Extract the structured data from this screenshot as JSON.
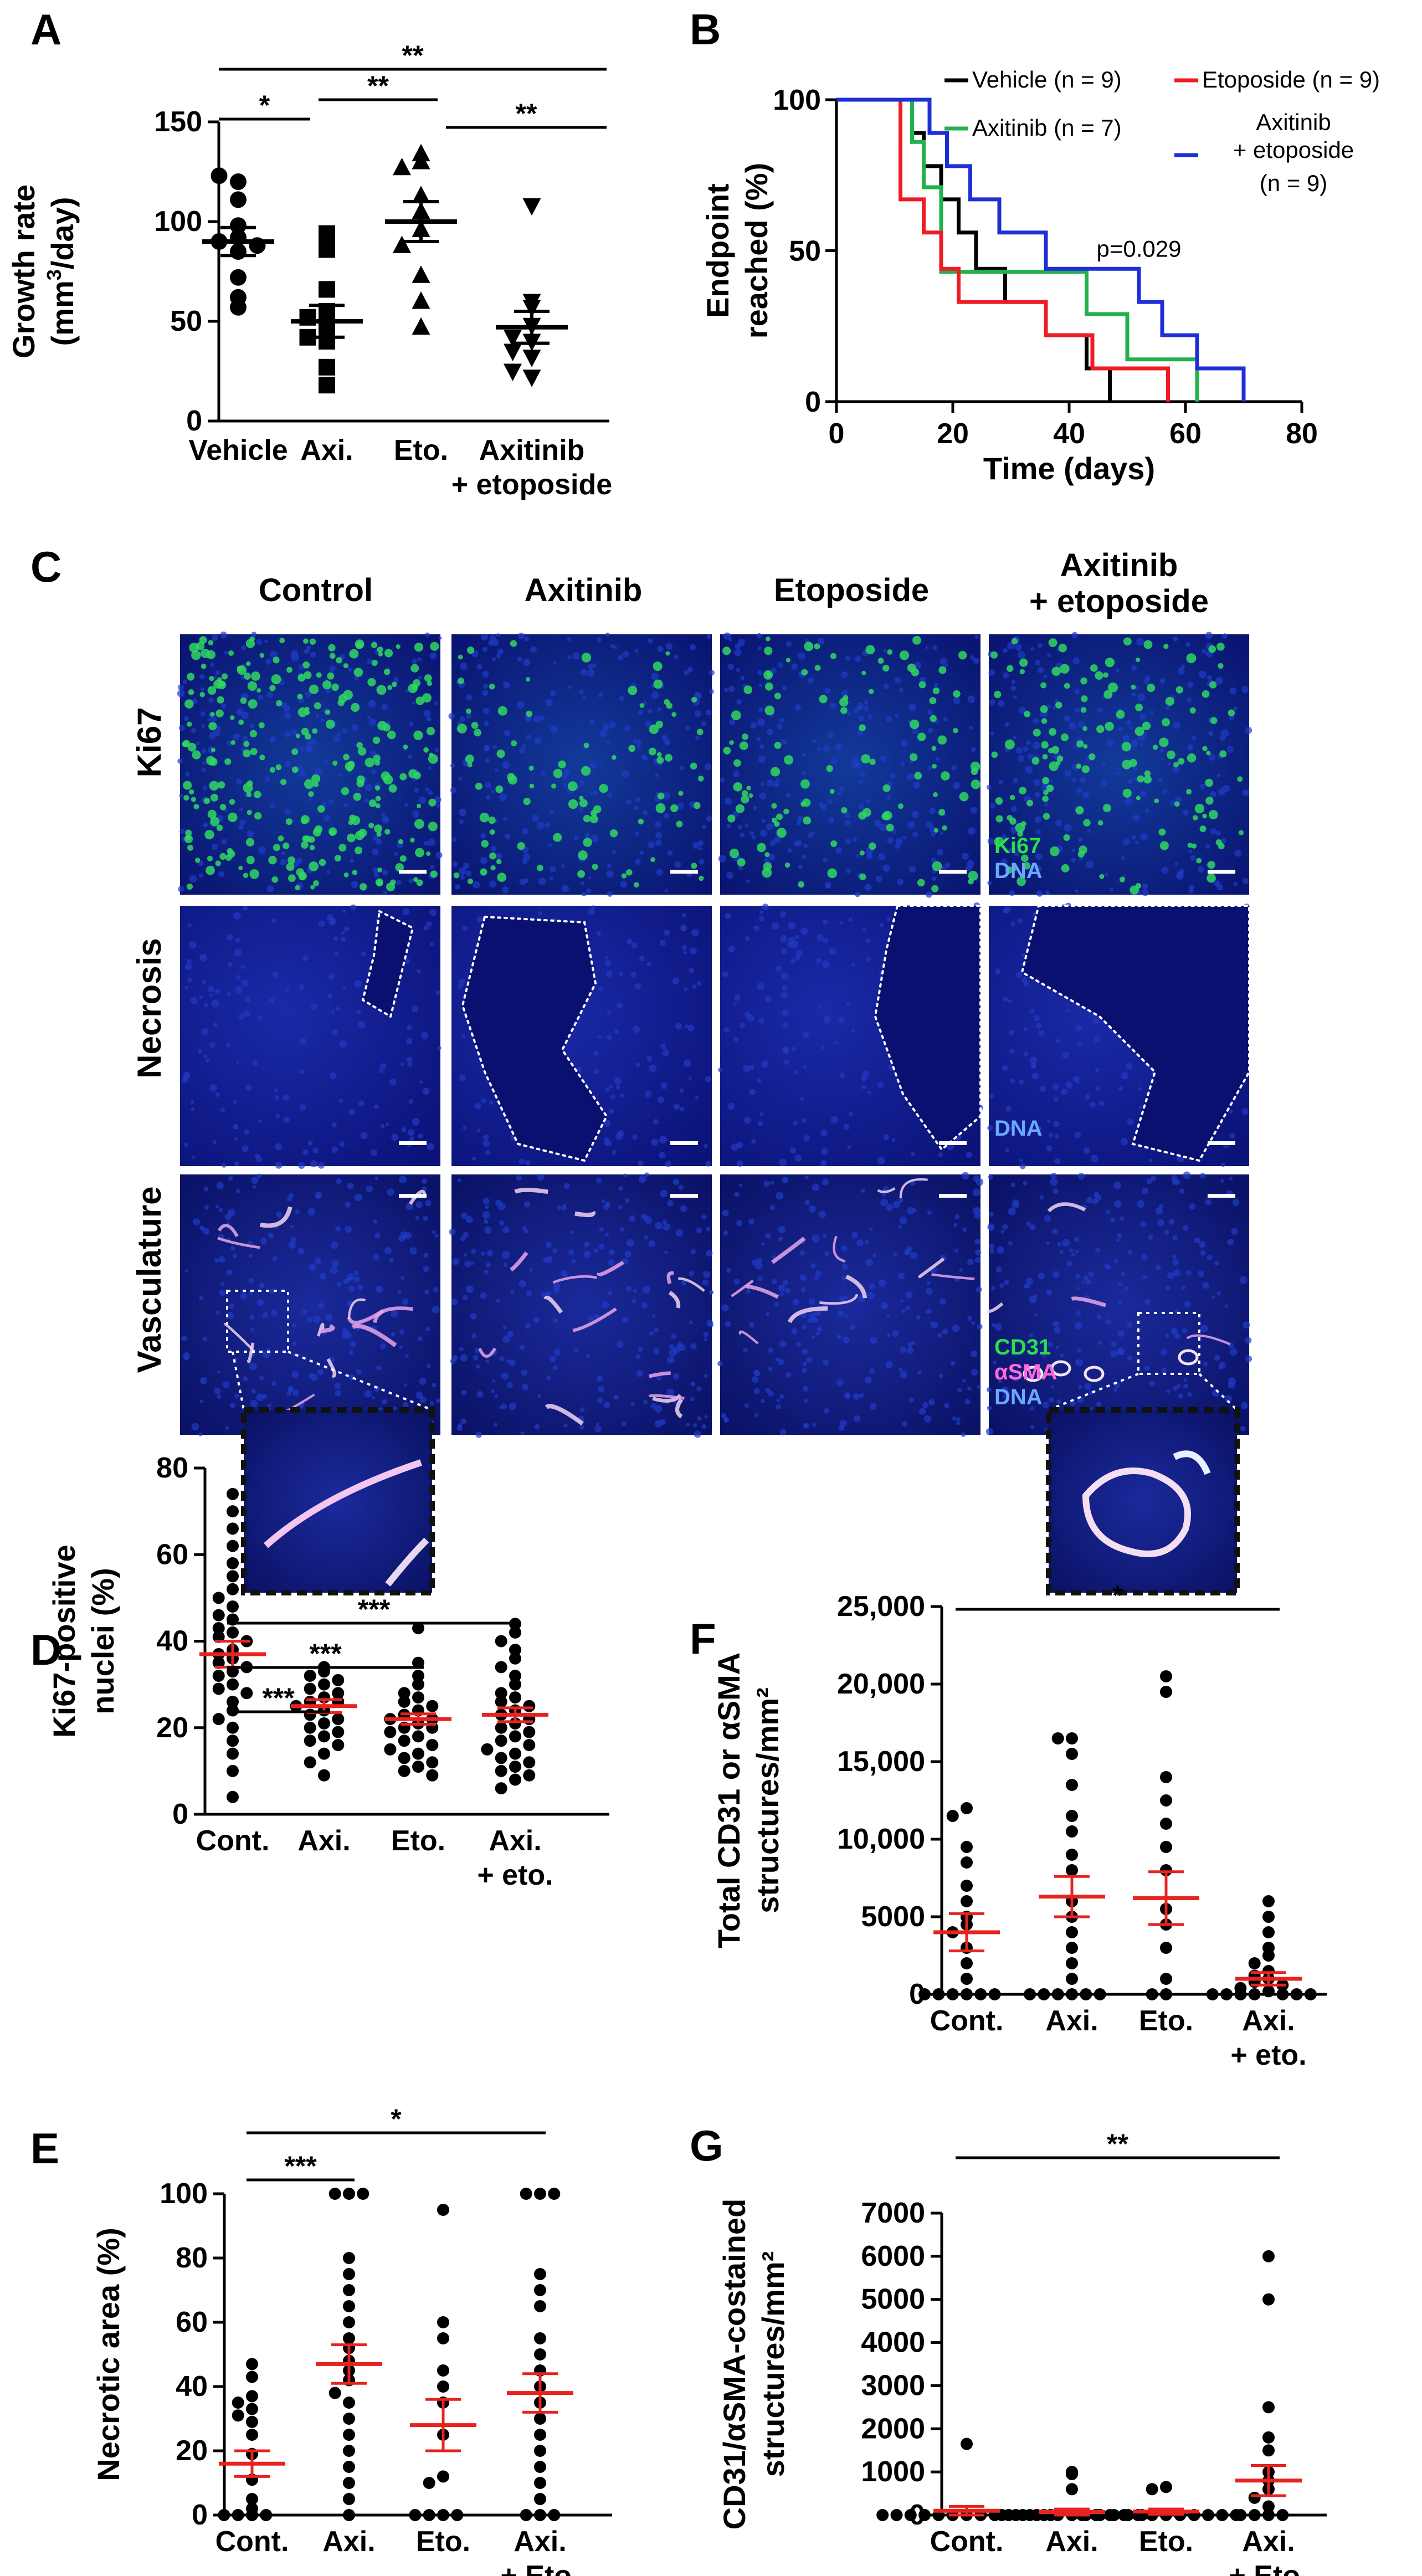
{
  "panel_letters": [
    "A",
    "B",
    "C",
    "D",
    "E",
    "F",
    "G"
  ],
  "colors": {
    "black": "#000000",
    "green": "#22b14c",
    "red": "#ee1c24",
    "blue": "#1f2fd6",
    "mean_red": "#e8231f",
    "tissue": "#101a8a"
  },
  "chart_data": [
    {
      "id": "A",
      "type": "scatter",
      "ylabel_line1": "Growth rate",
      "ylabel_line2_pre": "(mm",
      "ylabel_sup": "3",
      "ylabel_line2_post": "/day)",
      "ylim": [
        0,
        150
      ],
      "yticks": [
        0,
        50,
        100,
        150
      ],
      "categories": [
        "Vehicle",
        "Axi.",
        "Eto.",
        "Axitinib\n+ etoposide"
      ],
      "markers": [
        "circle",
        "square",
        "triangle-up",
        "triangle-down"
      ],
      "points": [
        [
          120,
          123,
          111,
          98,
          92,
          90,
          88,
          85,
          72,
          62,
          57
        ],
        [
          94,
          86,
          66,
          55,
          52,
          48,
          42,
          40,
          27,
          18
        ],
        [
          134,
          130,
          127,
          113,
          105,
          96,
          88,
          73,
          60,
          47
        ],
        [
          108,
          60,
          57,
          48,
          42,
          40,
          35,
          32,
          25,
          22
        ]
      ],
      "means": [
        90,
        50,
        100,
        47
      ],
      "sems": [
        7,
        8,
        10,
        8
      ],
      "significance": [
        {
          "from": 0,
          "to": 3,
          "label": "**"
        },
        {
          "from": 0,
          "to": 1,
          "label": "*"
        },
        {
          "from": 1,
          "to": 2,
          "label": "**"
        },
        {
          "from": 2,
          "to": 3,
          "label": "**"
        }
      ]
    },
    {
      "id": "B",
      "type": "line",
      "subtype": "kaplan-meier",
      "ylabel_line1": "Endpoint",
      "ylabel_line2": "reached (%)",
      "xlabel": "Time (days)",
      "xlim": [
        0,
        80
      ],
      "ylim": [
        0,
        100
      ],
      "xticks": [
        0,
        20,
        40,
        60,
        80
      ],
      "yticks": [
        0,
        50,
        100
      ],
      "annotation": "p=0.029",
      "series": [
        {
          "name": "Vehicle",
          "n": "(n = 9)",
          "color": "#000000",
          "steps": [
            [
              0,
              100
            ],
            [
              13,
              100
            ],
            [
              13,
              89
            ],
            [
              15,
              89
            ],
            [
              15,
              78
            ],
            [
              18,
              78
            ],
            [
              18,
              67
            ],
            [
              21,
              67
            ],
            [
              21,
              56
            ],
            [
              24,
              56
            ],
            [
              24,
              44
            ],
            [
              29,
              44
            ],
            [
              29,
              33
            ],
            [
              36,
              33
            ],
            [
              36,
              22
            ],
            [
              43,
              22
            ],
            [
              43,
              11
            ],
            [
              47,
              11
            ],
            [
              47,
              0
            ]
          ]
        },
        {
          "name": "Axitinib",
          "n": "(n = 7)",
          "color": "#22b14c",
          "steps": [
            [
              0,
              100
            ],
            [
              13,
              100
            ],
            [
              13,
              86
            ],
            [
              15,
              86
            ],
            [
              15,
              71
            ],
            [
              18,
              71
            ],
            [
              18,
              43
            ],
            [
              43,
              43
            ],
            [
              43,
              29
            ],
            [
              50,
              29
            ],
            [
              50,
              14
            ],
            [
              62,
              14
            ],
            [
              62,
              0
            ]
          ]
        },
        {
          "name": "Etoposide",
          "n": "(n = 9)",
          "color": "#ee1c24",
          "steps": [
            [
              0,
              100
            ],
            [
              11,
              100
            ],
            [
              11,
              67
            ],
            [
              15,
              67
            ],
            [
              15,
              56
            ],
            [
              18,
              56
            ],
            [
              18,
              44
            ],
            [
              21,
              44
            ],
            [
              21,
              33
            ],
            [
              36,
              33
            ],
            [
              36,
              22
            ],
            [
              44,
              22
            ],
            [
              44,
              11
            ],
            [
              57,
              11
            ],
            [
              57,
              0
            ]
          ]
        },
        {
          "name": "Axitinib\n+ etoposide",
          "n": "(n = 9)",
          "color": "#1f2fd6",
          "steps": [
            [
              0,
              100
            ],
            [
              16,
              100
            ],
            [
              16,
              89
            ],
            [
              19,
              89
            ],
            [
              19,
              78
            ],
            [
              23,
              78
            ],
            [
              23,
              67
            ],
            [
              28,
              67
            ],
            [
              28,
              56
            ],
            [
              36,
              56
            ],
            [
              36,
              44
            ],
            [
              52,
              44
            ],
            [
              52,
              33
            ],
            [
              56,
              33
            ],
            [
              56,
              22
            ],
            [
              62,
              22
            ],
            [
              62,
              11
            ],
            [
              70,
              11
            ],
            [
              70,
              0
            ]
          ]
        }
      ]
    },
    {
      "id": "D",
      "type": "scatter",
      "ylabel_line1": "Ki67-positive",
      "ylabel_line2": "nuclei (%)",
      "ylim": [
        0,
        80
      ],
      "yticks": [
        0,
        20,
        40,
        60,
        80
      ],
      "categories": [
        "Cont.",
        "Axi.",
        "Eto.",
        "Axi.\n+ eto."
      ],
      "points": [
        [
          74,
          70,
          66,
          62,
          58,
          55,
          52,
          50,
          48,
          46,
          45,
          43,
          42,
          41,
          40,
          38,
          37,
          36,
          35,
          34,
          33,
          32,
          30,
          29,
          28,
          26,
          24,
          22,
          20,
          17,
          14,
          10,
          4
        ],
        [
          34,
          33,
          32,
          31,
          30,
          29,
          28,
          27,
          26,
          26,
          25,
          24,
          23,
          22,
          21,
          20,
          19,
          18,
          17,
          16,
          14,
          12,
          9
        ],
        [
          43,
          35,
          32,
          30,
          28,
          27,
          26,
          25,
          24,
          23,
          22,
          22,
          21,
          20,
          20,
          19,
          18,
          17,
          16,
          15,
          14,
          13,
          12,
          11,
          10,
          9
        ],
        [
          44,
          42,
          40,
          38,
          36,
          34,
          32,
          30,
          28,
          27,
          26,
          25,
          24,
          23,
          22,
          21,
          20,
          19,
          18,
          17,
          16,
          15,
          14,
          13,
          12,
          11,
          10,
          9,
          8,
          6
        ]
      ],
      "means": [
        37,
        25,
        22,
        23
      ],
      "sems": [
        3,
        1.5,
        1.2,
        1.6
      ],
      "significance": [
        {
          "from": 0,
          "to": 3,
          "label": "***"
        },
        {
          "from": 0,
          "to": 2,
          "label": "***"
        },
        {
          "from": 0,
          "to": 1,
          "label": "***"
        }
      ]
    },
    {
      "id": "E",
      "type": "scatter",
      "ylabel_line1": "Necrotic area (%)",
      "ylim": [
        0,
        100
      ],
      "yticks": [
        0,
        20,
        40,
        60,
        80,
        100
      ],
      "categories": [
        "Cont.",
        "Axi.",
        "Eto.",
        "Axi.\n+ Eto."
      ],
      "points": [
        [
          47,
          43,
          37,
          35,
          33,
          31,
          29,
          25,
          19,
          11,
          5,
          2,
          0,
          0,
          0,
          0
        ],
        [
          100,
          100,
          100,
          80,
          75,
          70,
          65,
          60,
          55,
          52,
          48,
          45,
          42,
          38,
          35,
          30,
          25,
          20,
          15,
          10,
          5,
          0
        ],
        [
          95,
          60,
          55,
          45,
          40,
          35,
          25,
          12,
          10,
          0,
          0,
          0,
          0
        ],
        [
          100,
          100,
          100,
          75,
          70,
          65,
          55,
          50,
          45,
          40,
          35,
          30,
          25,
          20,
          15,
          10,
          5,
          0,
          0,
          0
        ]
      ],
      "means": [
        16,
        47,
        28,
        38
      ],
      "sems": [
        4,
        6,
        8,
        6
      ],
      "significance": [
        {
          "from": 0,
          "to": 3,
          "label": "*"
        },
        {
          "from": 0,
          "to": 1,
          "label": "***"
        }
      ]
    },
    {
      "id": "F",
      "type": "scatter",
      "ylabel_line1": "Total CD31 or αSMA",
      "ylabel_line2": "structures/mm²",
      "ylim": [
        0,
        25000
      ],
      "yticks": [
        0,
        5000,
        10000,
        15000,
        20000,
        25000
      ],
      "ytick_labels": [
        "0",
        "5000",
        "10,000",
        "15,000",
        "20,000",
        "25,000"
      ],
      "categories": [
        "Cont.",
        "Axi.",
        "Eto.",
        "Axi.\n+ eto."
      ],
      "points": [
        [
          12000,
          11500,
          9500,
          8500,
          7000,
          6000,
          5000,
          4500,
          4000,
          3000,
          2000,
          1000,
          0,
          0,
          0,
          0,
          0,
          0
        ],
        [
          16500,
          16500,
          15500,
          13500,
          11500,
          10500,
          9000,
          8000,
          6000,
          5000,
          4000,
          3000,
          2000,
          1000,
          0,
          0,
          0,
          0,
          0,
          0
        ],
        [
          20500,
          19500,
          14000,
          12500,
          11000,
          9500,
          8000,
          5500,
          4500,
          3000,
          1000,
          0,
          0
        ],
        [
          6000,
          5000,
          4000,
          3000,
          2500,
          2000,
          1500,
          1200,
          1000,
          800,
          600,
          400,
          200,
          0,
          0,
          0,
          0,
          0,
          0,
          0
        ]
      ],
      "means": [
        4000,
        6300,
        6200,
        1000
      ],
      "sems": [
        1200,
        1300,
        1700,
        400
      ],
      "significance": [
        {
          "from": 0,
          "to": 3,
          "label": "*"
        }
      ]
    },
    {
      "id": "G",
      "type": "scatter",
      "ylabel_line1": "CD31/αSMA-costained",
      "ylabel_line2": "structures/mm²",
      "ylim": [
        0,
        7000
      ],
      "yticks": [
        0,
        1000,
        2000,
        3000,
        4000,
        5000,
        6000,
        7000
      ],
      "categories": [
        "Cont.",
        "Axi.",
        "Eto.",
        "Axi.\n+ Eto."
      ],
      "points": [
        [
          1650,
          0,
          0,
          0,
          0,
          0,
          0,
          0,
          0,
          0,
          0,
          0,
          0,
          0
        ],
        [
          1000,
          950,
          600,
          0,
          0,
          0,
          0,
          0,
          0,
          0,
          0,
          0,
          0,
          0
        ],
        [
          650,
          600,
          0,
          0,
          0,
          0,
          0,
          0,
          0,
          0,
          0,
          0,
          0,
          0
        ],
        [
          6000,
          5000,
          2500,
          1800,
          1500,
          1000,
          800,
          600,
          400,
          200,
          0,
          0,
          0,
          0
        ]
      ],
      "means": [
        100,
        70,
        80,
        800
      ],
      "sems": [
        100,
        70,
        60,
        350
      ],
      "significance": [
        {
          "from": 0,
          "to": 3,
          "label": "**"
        }
      ]
    }
  ],
  "micrographs": {
    "columns": [
      "Control",
      "Axitinib",
      "Etoposide",
      "Axitinib\n+ etoposide"
    ],
    "rows": [
      "Ki67",
      "Necrosis",
      "Vasculature"
    ],
    "stain_labels": {
      "ki67": [
        "Ki67",
        "DNA"
      ],
      "necrosis": [
        "DNA"
      ],
      "vasculature": [
        "CD31",
        "αSMA",
        "DNA"
      ]
    }
  }
}
